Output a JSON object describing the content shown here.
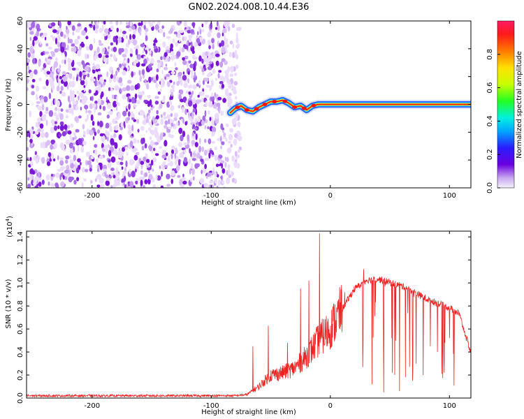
{
  "title": "GN02.2024.008.10.44.E36",
  "colors": {
    "noise": "#8a2be2",
    "snr_line": "#ee2222",
    "ridge_core": "#ff1111",
    "ridge_mid": "#ffee00",
    "ridge_outer": "#22ccff",
    "ridge_edge": "#1144ff"
  },
  "chart_data": [
    {
      "type": "heatmap",
      "name": "spectrogram",
      "xlabel": "Height of straight line (km)",
      "ylabel": "Frequency (Hz)",
      "xlim": [
        -255,
        118
      ],
      "ylim": [
        -60,
        60
      ],
      "x_ticks": [
        -200,
        -100,
        0,
        100
      ],
      "y_ticks": [
        -60,
        -40,
        -20,
        0,
        20,
        40,
        60
      ],
      "colorbar": {
        "label": "Normalized spectral amplitude",
        "range": [
          0.0,
          1.0
        ],
        "ticks": [
          "0.0",
          "0.2",
          "0.4",
          "0.6",
          "0.8"
        ]
      },
      "noise_region_x": [
        -255,
        -80
      ],
      "ridge": {
        "x": [
          -84,
          -80,
          -75,
          -70,
          -65,
          -60,
          -55,
          -50,
          -45,
          -40,
          -35,
          -30,
          -25,
          -20,
          -15,
          -10,
          0,
          20,
          40,
          60,
          80,
          100,
          118
        ],
        "freq": [
          -6,
          -3,
          -1,
          -4,
          -5,
          -2,
          0,
          2,
          2,
          3,
          1,
          -2,
          -1,
          -4,
          -1,
          0,
          0,
          0,
          0,
          0,
          0,
          0,
          0
        ]
      }
    },
    {
      "type": "line",
      "name": "snr",
      "xlabel": "Height of straight line (km)",
      "ylabel": "SNR (10 * v/v)",
      "y_multiplier": "(x10",
      "y_multiplier_exp": "4",
      "y_multiplier_close": ")",
      "xlim": [
        -255,
        118
      ],
      "ylim": [
        0.0,
        1.45
      ],
      "x_ticks": [
        -200,
        -100,
        0,
        100
      ],
      "y_ticks": [
        "0.0",
        "0.2",
        "0.4",
        "0.6",
        "0.8",
        "1.0",
        "1.2",
        "1.4"
      ],
      "envelope": {
        "x": [
          -255,
          -80,
          -70,
          -60,
          -50,
          -40,
          -30,
          -20,
          -10,
          0,
          10,
          20,
          30,
          40,
          50,
          60,
          70,
          80,
          90,
          100,
          108,
          118
        ],
        "y": [
          0.02,
          0.02,
          0.03,
          0.1,
          0.2,
          0.22,
          0.26,
          0.36,
          0.5,
          0.6,
          0.78,
          0.95,
          1.03,
          1.04,
          1.01,
          0.98,
          0.93,
          0.87,
          0.83,
          0.79,
          0.74,
          0.4
        ]
      },
      "peaks": {
        "x": [
          -65,
          -52,
          -36,
          -25,
          -18,
          -9,
          12,
          28,
          46,
          58,
          64,
          70
        ],
        "y": [
          0.45,
          0.63,
          0.48,
          0.95,
          1.02,
          1.43,
          0.92,
          1.12,
          0.97,
          0.98,
          0.95,
          0.88
        ]
      },
      "dips": {
        "x": [
          35,
          45,
          52,
          58,
          63,
          69,
          72,
          78,
          84,
          90,
          96,
          100,
          104
        ],
        "y": [
          0.12,
          0.05,
          0.22,
          0.06,
          0.18,
          0.15,
          0.3,
          0.2,
          0.45,
          0.4,
          0.48,
          0.52,
          0.56
        ]
      }
    }
  ]
}
